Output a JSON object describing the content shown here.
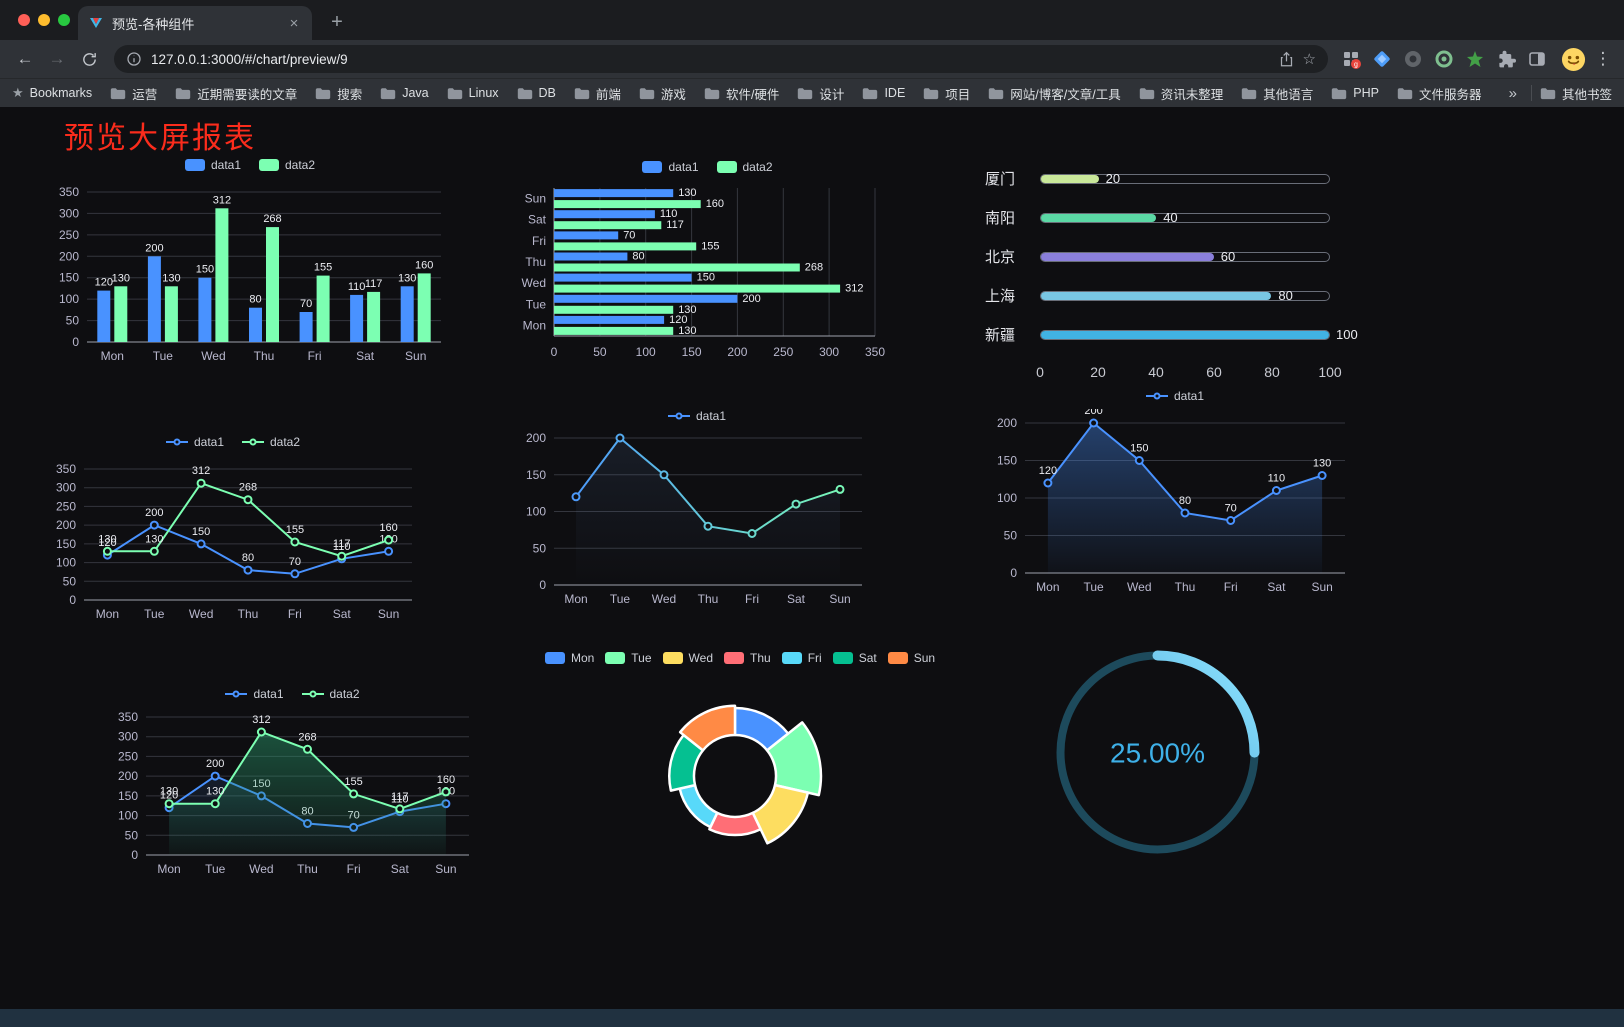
{
  "browser": {
    "tab_title": "预览-各种组件",
    "url": "127.0.0.1:3000/#/chart/preview/9",
    "new_tab_button": "+",
    "tab_close": "×",
    "nav": {
      "back": "←",
      "forward": "→"
    },
    "bookmark_items": [
      {
        "label": "Bookmarks",
        "icon": "star-icon"
      },
      {
        "label": "运营",
        "icon": "folder-icon"
      },
      {
        "label": "近期需要读的文章",
        "icon": "folder-icon"
      },
      {
        "label": "搜索",
        "icon": "folder-icon"
      },
      {
        "label": "Java",
        "icon": "folder-icon"
      },
      {
        "label": "Linux",
        "icon": "folder-icon"
      },
      {
        "label": "DB",
        "icon": "folder-icon"
      },
      {
        "label": "前端",
        "icon": "folder-icon"
      },
      {
        "label": "游戏",
        "icon": "folder-icon"
      },
      {
        "label": "软件/硬件",
        "icon": "folder-icon"
      },
      {
        "label": "设计",
        "icon": "folder-icon"
      },
      {
        "label": "IDE",
        "icon": "folder-icon"
      },
      {
        "label": "项目",
        "icon": "folder-icon"
      },
      {
        "label": "网站/博客/文章/工具",
        "icon": "folder-icon"
      },
      {
        "label": "资讯未整理",
        "icon": "folder-icon"
      },
      {
        "label": "其他语言",
        "icon": "folder-icon"
      },
      {
        "label": "PHP",
        "icon": "folder-icon"
      },
      {
        "label": "文件服务器",
        "icon": "folder-icon"
      }
    ],
    "overflow_chevron": "»",
    "other_bookmarks": "其他书签",
    "extension_icons": [
      "apps-grid-extension-icon",
      "blue-gem-extension-icon",
      "dark-circle-extension-icon",
      "green-circle-extension-icon",
      "green-star-extension-icon",
      "puzzle-extension-icon",
      "split-view-extension-icon"
    ]
  },
  "page": {
    "title": "预览大屏报表",
    "title_color": "#fb2c1c"
  },
  "theme": {
    "background": "#0e0e11",
    "grid": "#34363e",
    "axis": "#9fa2ad",
    "tick_text": "#b9b8ce",
    "value_text": "#ebecf1",
    "footer": "#203140"
  },
  "chart_data": [
    {
      "id": "c1",
      "type": "bar",
      "legend_marker": "pill",
      "categories": [
        "Mon",
        "Tue",
        "Wed",
        "Thu",
        "Fri",
        "Sat",
        "Sun"
      ],
      "series": [
        {
          "name": "data1",
          "color": "#4992ff",
          "values": [
            120,
            200,
            150,
            80,
            70,
            110,
            130
          ]
        },
        {
          "name": "data2",
          "color": "#7cffb2",
          "values": [
            130,
            130,
            312,
            268,
            155,
            117,
            160
          ]
        }
      ],
      "ylim": [
        0,
        350
      ],
      "yticks": [
        0,
        50,
        100,
        150,
        200,
        250,
        300,
        350
      ],
      "labels": true
    },
    {
      "id": "c2",
      "type": "hbar",
      "legend_marker": "pill",
      "categories": [
        "Mon",
        "Tue",
        "Wed",
        "Thu",
        "Fri",
        "Sat",
        "Sun"
      ],
      "series": [
        {
          "name": "data1",
          "color": "#4992ff",
          "values": [
            120,
            200,
            150,
            80,
            70,
            110,
            130
          ]
        },
        {
          "name": "data2",
          "color": "#7cffb2",
          "values": [
            130,
            130,
            312,
            268,
            155,
            117,
            160
          ]
        }
      ],
      "xlim": [
        0,
        350
      ],
      "xticks": [
        0,
        50,
        100,
        150,
        200,
        250,
        300,
        350
      ],
      "labels": true
    },
    {
      "id": "c3",
      "type": "progress",
      "max": 100,
      "xticks": [
        0,
        20,
        40,
        60,
        80,
        100
      ],
      "items": [
        {
          "label": "厦门",
          "value": 20,
          "color": "#c9e89a"
        },
        {
          "label": "南阳",
          "value": 40,
          "color": "#5bd8a5"
        },
        {
          "label": "北京",
          "value": 60,
          "color": "#8a7fdb"
        },
        {
          "label": "上海",
          "value": 80,
          "color": "#79c6e3"
        },
        {
          "label": "新疆",
          "value": 100,
          "color": "#41b2e3"
        }
      ]
    },
    {
      "id": "c4",
      "type": "line",
      "legend_marker": "line",
      "categories": [
        "Mon",
        "Tue",
        "Wed",
        "Thu",
        "Fri",
        "Sat",
        "Sun"
      ],
      "series": [
        {
          "name": "data1",
          "color": "#4992ff",
          "values": [
            120,
            200,
            150,
            80,
            70,
            110,
            130
          ]
        },
        {
          "name": "data2",
          "color": "#7cffb2",
          "values": [
            130,
            130,
            312,
            268,
            155,
            117,
            160
          ]
        }
      ],
      "ylim": [
        0,
        350
      ],
      "yticks": [
        0,
        50,
        100,
        150,
        200,
        250,
        300,
        350
      ],
      "labels": true
    },
    {
      "id": "c5",
      "type": "line",
      "legend_marker": "line",
      "categories": [
        "Mon",
        "Tue",
        "Wed",
        "Thu",
        "Fri",
        "Sat",
        "Sun"
      ],
      "series": [
        {
          "name": "data1",
          "gradient": [
            "#4992ff",
            "#7cffb2"
          ],
          "area_from": "rgba(100,140,200,0.12)",
          "area_to": "rgba(100,140,200,0)",
          "values": [
            120,
            200,
            150,
            80,
            70,
            110,
            130
          ]
        }
      ],
      "ylim": [
        0,
        200
      ],
      "yticks": [
        0,
        50,
        100,
        150,
        200
      ],
      "labels": false
    },
    {
      "id": "c6",
      "type": "line",
      "legend_marker": "line",
      "categories": [
        "Mon",
        "Tue",
        "Wed",
        "Thu",
        "Fri",
        "Sat",
        "Sun"
      ],
      "series": [
        {
          "name": "data1",
          "color": "#4992ff",
          "area_from": "rgba(73,146,255,0.38)",
          "area_to": "rgba(73,146,255,0.03)",
          "values": [
            120,
            200,
            150,
            80,
            70,
            110,
            130
          ]
        }
      ],
      "ylim": [
        0,
        200
      ],
      "yticks": [
        0,
        50,
        100,
        150,
        200
      ],
      "labels": true
    },
    {
      "id": "c7",
      "type": "line",
      "legend_marker": "line",
      "categories": [
        "Mon",
        "Tue",
        "Wed",
        "Thu",
        "Fri",
        "Sat",
        "Sun"
      ],
      "series": [
        {
          "name": "data1",
          "color": "#4992ff",
          "area_from": "rgba(73,146,255,0.20)",
          "area_to": "rgba(73,146,255,0)",
          "values": [
            120,
            200,
            150,
            80,
            70,
            110,
            130
          ]
        },
        {
          "name": "data2",
          "color": "#7cffb2",
          "area_from": "rgba(40,150,105,0.55)",
          "area_to": "rgba(40,150,105,0.05)",
          "values": [
            130,
            130,
            312,
            268,
            155,
            117,
            160
          ]
        }
      ],
      "ylim": [
        0,
        350
      ],
      "yticks": [
        0,
        50,
        100,
        150,
        200,
        250,
        300,
        350
      ],
      "labels": true
    },
    {
      "id": "c8",
      "type": "pie",
      "rose": true,
      "legend_marker": "pill",
      "categories": [
        "Mon",
        "Tue",
        "Wed",
        "Thu",
        "Fri",
        "Sat",
        "Sun"
      ],
      "values": [
        120,
        200,
        150,
        80,
        70,
        110,
        130
      ],
      "colors": [
        "#4992ff",
        "#7cffb2",
        "#fddd60",
        "#ff6e76",
        "#58d9f9",
        "#05c091",
        "#ff8a45"
      ]
    },
    {
      "id": "c9",
      "type": "gauge",
      "value": 25,
      "label": "25.00%",
      "color": "#37a2da",
      "track_color": "#1d4a5c"
    }
  ]
}
